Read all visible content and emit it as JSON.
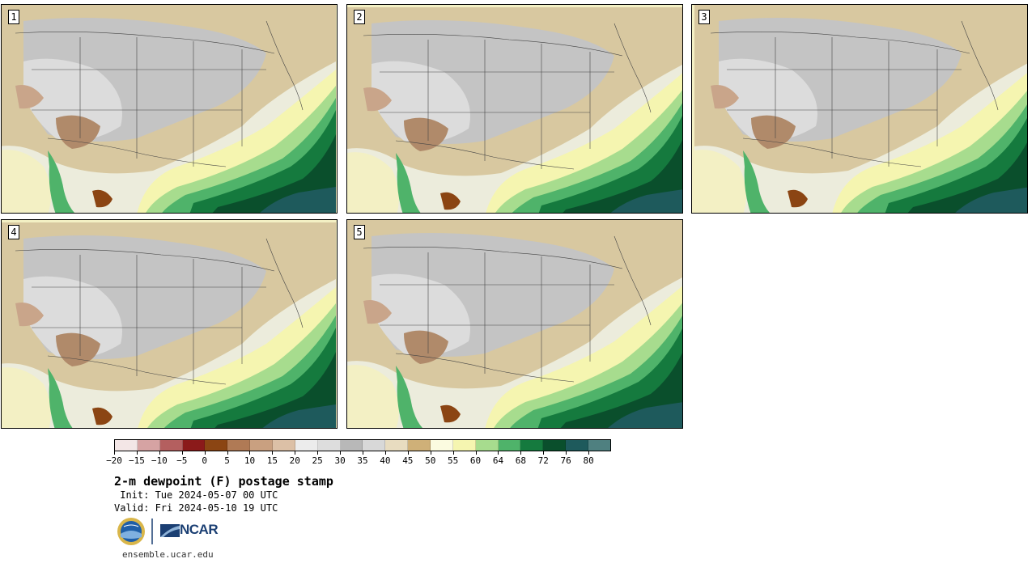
{
  "panels": [
    {
      "label": "1"
    },
    {
      "label": "2"
    },
    {
      "label": "3"
    },
    {
      "label": "4"
    },
    {
      "label": "5"
    }
  ],
  "colorbar": {
    "colors": [
      "#f3e6e6",
      "#d6a3a3",
      "#b45f5f",
      "#8b1a1a",
      "#8b4513",
      "#b07a55",
      "#c9a080",
      "#dcc0a6",
      "#ececec",
      "#dddddd",
      "#b8b8b8",
      "#d8d8d8",
      "#e8dcc0",
      "#cfb078",
      "#fbfbe0",
      "#f5f5b0",
      "#a7dc8e",
      "#4fb36a",
      "#157a3e",
      "#0a4f2c",
      "#1e5a5c",
      "#4f8080"
    ],
    "labels": [
      "−20",
      "−15",
      "−10",
      "−5",
      "0",
      "5",
      "10",
      "15",
      "20",
      "25",
      "30",
      "35",
      "40",
      "45",
      "50",
      "55",
      "60",
      "64",
      "68",
      "72",
      "76",
      "80"
    ]
  },
  "title": "2-m dewpoint (F) postage stamp",
  "init_line": " Init: Tue 2024-05-07 00 UTC",
  "valid_line": "Valid: Fri 2024-05-10 19 UTC",
  "logo_text": "NCAR",
  "site": "ensemble.ucar.edu"
}
